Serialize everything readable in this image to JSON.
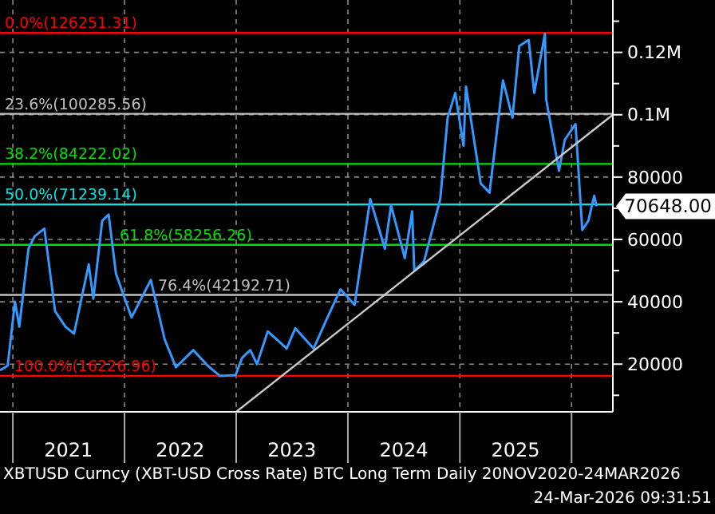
{
  "chart_data": {
    "type": "line",
    "x": [
      "2020-11-20",
      "2020-12-15",
      "2021-01-08",
      "2021-01-22",
      "2021-02-21",
      "2021-03-13",
      "2021-04-14",
      "2021-05-19",
      "2021-06-22",
      "2021-07-20",
      "2021-09-06",
      "2021-09-21",
      "2021-10-20",
      "2021-11-10",
      "2021-12-04",
      "2022-01-24",
      "2022-03-28",
      "2022-05-12",
      "2022-06-18",
      "2022-08-14",
      "2022-09-30",
      "2022-11-09",
      "2022-12-30",
      "2023-01-20",
      "2023-02-16",
      "2023-03-10",
      "2023-04-14",
      "2023-06-15",
      "2023-07-13",
      "2023-09-11",
      "2023-10-24",
      "2023-12-08",
      "2024-01-23",
      "2024-03-14",
      "2024-05-01",
      "2024-05-21",
      "2024-07-05",
      "2024-07-29",
      "2024-08-05",
      "2024-09-06",
      "2024-10-29",
      "2024-11-22",
      "2024-12-17",
      "2025-01-13",
      "2025-01-21",
      "2025-03-10",
      "2025-04-08",
      "2025-05-22",
      "2025-06-22",
      "2025-07-14",
      "2025-08-14",
      "2025-09-01",
      "2025-10-06",
      "2025-10-10",
      "2025-11-21",
      "2025-12-10",
      "2026-01-14",
      "2026-02-05",
      "2026-02-25",
      "2026-03-16",
      "2026-03-24"
    ],
    "series": [
      {
        "color": "#3399ff",
        "values": [
          18000,
          19500,
          40000,
          32000,
          57000,
          61000,
          63500,
          37000,
          32000,
          29800,
          52000,
          41000,
          66000,
          68000,
          49000,
          35000,
          47000,
          28000,
          19000,
          24500,
          19500,
          16200,
          16500,
          22000,
          24500,
          20000,
          30500,
          25000,
          31500,
          25000,
          34500,
          44000,
          39000,
          73000,
          57000,
          71000,
          54000,
          69000,
          50000,
          53000,
          73000,
          99000,
          107000,
          90000,
          109000,
          78000,
          75000,
          111000,
          99000,
          122000,
          124000,
          107000,
          126000,
          105000,
          82000,
          92000,
          97000,
          63000,
          66000,
          74000,
          70648
        ]
      },
      {
        "color": "#c8c8c8",
        "x": [
          "2023-01-01",
          "2026-05-16"
        ],
        "values": [
          4700,
          100000
        ]
      }
    ],
    "xlim": [
      "2020-11-20",
      "2026-05-16"
    ],
    "xticks": [
      {
        "value": "2021-01-01",
        "label": null
      },
      {
        "value": "2021-07-02",
        "label": "2021"
      },
      {
        "value": "2022-01-01",
        "label": null
      },
      {
        "value": "2022-07-02",
        "label": "2022"
      },
      {
        "value": "2023-01-01",
        "label": null
      },
      {
        "value": "2023-07-02",
        "label": "2023"
      },
      {
        "value": "2024-01-01",
        "label": null
      },
      {
        "value": "2024-07-02",
        "label": "2024"
      },
      {
        "value": "2025-01-01",
        "label": null
      },
      {
        "value": "2025-07-02",
        "label": "2025"
      },
      {
        "value": "2026-01-01",
        "label": null
      }
    ],
    "ylim": [
      4700,
      136800
    ],
    "yticks": [
      {
        "value": 10000,
        "label": null
      },
      20000,
      {
        "value": 30000,
        "label": null
      },
      40000,
      {
        "value": 50000,
        "label": null
      },
      60000,
      {
        "value": 70000,
        "label": null
      },
      80000,
      {
        "value": 90000,
        "label": null
      },
      {
        "value": 100000,
        "label": "0.1M"
      },
      {
        "value": 110000,
        "label": null
      },
      {
        "value": 120000,
        "label": "0.12M"
      },
      {
        "value": 130000,
        "label": null
      }
    ],
    "grid": true,
    "marker": "none",
    "ref_lines": [
      {
        "axis": "y",
        "value": 126251.31,
        "label": "0.0%(126251.31)",
        "color": "#ff0000"
      },
      {
        "axis": "y",
        "value": 100285.56,
        "label": "23.6%(100285.56)",
        "color": "#c0c0c0"
      },
      {
        "axis": "y",
        "value": 84222.02,
        "label": "38.2%(84222.02)",
        "color": "#00e000"
      },
      {
        "axis": "y",
        "value": 71239.14,
        "label": "50.0%(71239.14)",
        "color": "#00e5e5"
      },
      {
        "axis": "y",
        "value": 58256.26,
        "label": "61.8%(58256.26)",
        "color": "#00e000"
      },
      {
        "axis": "y",
        "value": 42192.71,
        "label": "76.4%(42192.71)",
        "color": "#c0c0c0"
      },
      {
        "axis": "y",
        "value": 16226.96,
        "label": "100.0%(16226.96)",
        "color": "#ff0000"
      }
    ],
    "annotations": [
      {
        "text": "70648.00",
        "x": "2026-03-24",
        "y": 70648
      },
      "XBTUSD Curncy (XBT-USD Cross Rate) BTC Long Term Daily 20NOV2020-24MAR2026",
      "24-Mar-2026 09:31:51"
    ]
  }
}
